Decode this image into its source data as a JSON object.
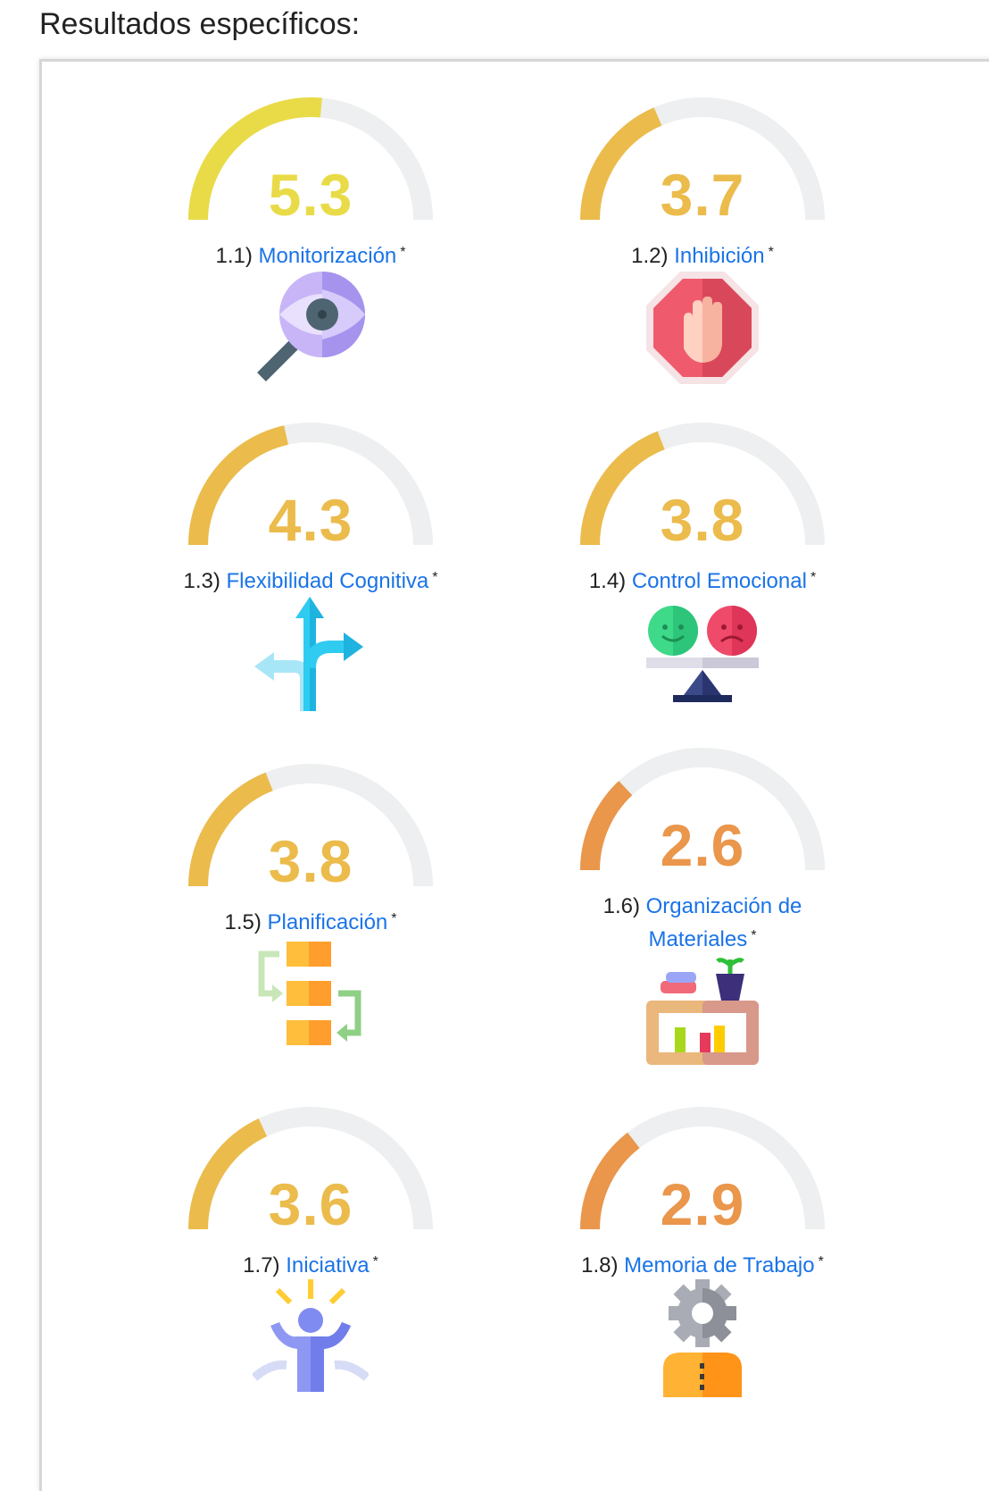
{
  "heading": "Resultados específicos:",
  "results": [
    {
      "num": "1.1)",
      "name": "Monitorización",
      "score": "5.3",
      "value": 5.3,
      "color": "#e9db48",
      "star": "*",
      "icon": "magnifier-eye-icon"
    },
    {
      "num": "1.2)",
      "name": "Inhibición",
      "score": "3.7",
      "value": 3.7,
      "color": "#ebbb4c",
      "star": "*",
      "icon": "stop-hand-icon"
    },
    {
      "num": "1.3)",
      "name": "Flexibilidad Cognitiva",
      "score": "4.3",
      "value": 4.3,
      "color": "#ebbb4c",
      "star": "*",
      "icon": "split-arrows-icon"
    },
    {
      "num": "1.4)",
      "name": "Control Emocional",
      "score": "3.8",
      "value": 3.8,
      "color": "#ebbb4c",
      "star": "*",
      "icon": "emotion-balance-icon"
    },
    {
      "num": "1.5)",
      "name": "Planificación",
      "score": "3.8",
      "value": 3.8,
      "color": "#ebbb4c",
      "star": "*",
      "icon": "planning-blocks-icon"
    },
    {
      "num": "1.6)",
      "name_line1": "Organización de",
      "name_line2": "Materiales",
      "score": "2.6",
      "value": 2.6,
      "color": "#ea964b",
      "star": "*",
      "icon": "shelf-materials-icon"
    },
    {
      "num": "1.7)",
      "name": "Iniciativa",
      "score": "3.6",
      "value": 3.6,
      "color": "#ebbb4c",
      "star": "*",
      "icon": "person-initiative-icon"
    },
    {
      "num": "1.8)",
      "name": "Memoria de Trabajo",
      "score": "2.9",
      "value": 2.9,
      "color": "#ea964b",
      "star": "*",
      "icon": "gear-memory-icon"
    }
  ],
  "gauge_max": 10,
  "track_color": "#edeff0"
}
